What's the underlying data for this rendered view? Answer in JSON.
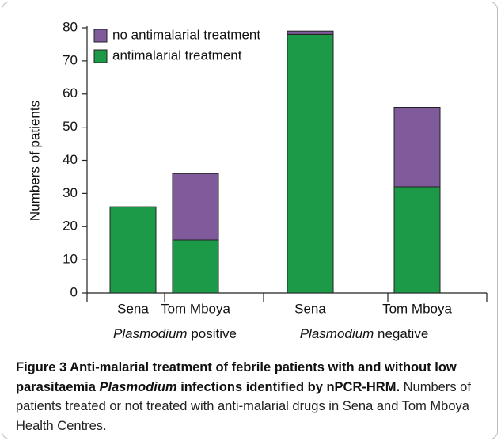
{
  "chart_data": {
    "type": "stacked_bar",
    "ylabel": "Numbers of patients",
    "categories": [
      "Sena",
      "Tom Mboya",
      "Sena",
      "Tom Mboya"
    ],
    "groups": [
      {
        "italic": "Plasmodium",
        "rest": "positive"
      },
      {
        "italic": "Plasmodium",
        "rest": "negative"
      }
    ],
    "series": [
      {
        "name": "antimalarial treatment",
        "color": "#1d9a48",
        "values": [
          26,
          16,
          78,
          32
        ]
      },
      {
        "name": "no antimalarial treatment",
        "color": "#7f5b9b",
        "values": [
          0,
          20,
          1,
          24
        ]
      }
    ],
    "ylim": [
      0,
      80
    ],
    "yticks": [
      0,
      10,
      20,
      30,
      40,
      50,
      60,
      70,
      80
    ]
  },
  "caption": {
    "title": [
      "Figure 3 Anti-malarial treatment of febrile patients with and without low parasitaemia",
      "Plasmodium",
      "infections identified by nPCR-HRM."
    ],
    "text": "Numbers of patients treated or not treated with anti-malarial drugs in Sena and Tom Mboya Health Centres."
  }
}
